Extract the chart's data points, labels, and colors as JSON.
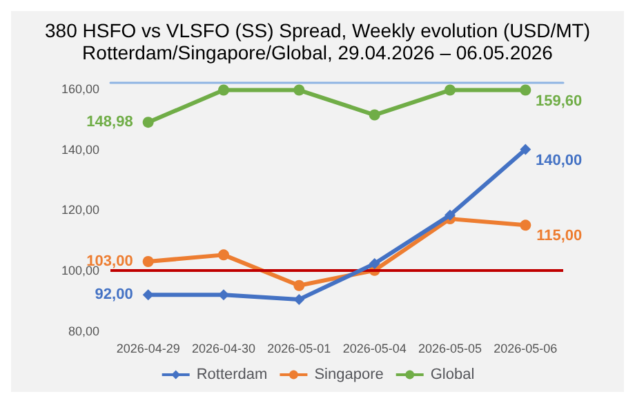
{
  "chart_data": {
    "type": "line",
    "title": "380 HSFO vs VLSFO (SS) Spread, Weekly evolution (USD/MT)",
    "subtitle": "Rotterdam/Singapore/Global, 29.04.2026 – 06.05.2026",
    "categories": [
      "2026-04-29",
      "2026-04-30",
      "2026-05-01",
      "2026-05-04",
      "2026-05-05",
      "2026-05-06"
    ],
    "series": [
      {
        "name": "Rotterdam",
        "color": "#4472c4",
        "marker": "diamond",
        "values": [
          92,
          92,
          90.5,
          102.3,
          118.3,
          140
        ],
        "value_labels": [
          "92,00",
          null,
          null,
          null,
          null,
          "140,00"
        ]
      },
      {
        "name": "Singapore",
        "color": "#ed7d31",
        "marker": "circle",
        "values": [
          103,
          105.2,
          95.1,
          100.1,
          117.1,
          115
        ],
        "value_labels": [
          "103,00",
          null,
          null,
          null,
          null,
          "115,00"
        ]
      },
      {
        "name": "Global",
        "color": "#70ad47",
        "marker": "circle",
        "values": [
          148.98,
          159.6,
          159.6,
          151.4,
          159.6,
          159.6
        ],
        "value_labels": [
          "148,98",
          null,
          null,
          null,
          null,
          "159,60"
        ]
      }
    ],
    "ylim": [
      80,
      162
    ],
    "yticks": [
      {
        "value": 80,
        "label": "80,00"
      },
      {
        "value": 100,
        "label": "100,00"
      },
      {
        "value": 120,
        "label": "120,00"
      },
      {
        "value": 140,
        "label": "140,00"
      },
      {
        "value": 160,
        "label": "160,00"
      }
    ],
    "ref_lines": [
      {
        "axis": "y",
        "value": 100,
        "label": null,
        "color": "#c00000"
      }
    ],
    "grid": false,
    "legend": "bottom"
  }
}
